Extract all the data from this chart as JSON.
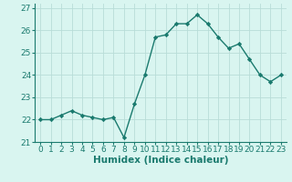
{
  "x": [
    0,
    1,
    2,
    3,
    4,
    5,
    6,
    7,
    8,
    9,
    10,
    11,
    12,
    13,
    14,
    15,
    16,
    17,
    18,
    19,
    20,
    21,
    22,
    23
  ],
  "y": [
    22.0,
    22.0,
    22.2,
    22.4,
    22.2,
    22.1,
    22.0,
    22.1,
    21.2,
    22.7,
    24.0,
    25.7,
    25.8,
    26.3,
    26.3,
    26.7,
    26.3,
    25.7,
    25.2,
    25.4,
    24.7,
    24.0,
    23.7,
    24.0
  ],
  "xlabel": "Humidex (Indice chaleur)",
  "xlim": [
    -0.5,
    23.5
  ],
  "ylim": [
    21.0,
    27.2
  ],
  "yticks": [
    21,
    22,
    23,
    24,
    25,
    26,
    27
  ],
  "xticks": [
    0,
    1,
    2,
    3,
    4,
    5,
    6,
    7,
    8,
    9,
    10,
    11,
    12,
    13,
    14,
    15,
    16,
    17,
    18,
    19,
    20,
    21,
    22,
    23
  ],
  "line_color": "#1a7a6e",
  "marker_color": "#1a7a6e",
  "bg_color": "#d9f5f0",
  "grid_color": "#b8ddd8",
  "label_fontsize": 7.5,
  "tick_fontsize": 6.5
}
